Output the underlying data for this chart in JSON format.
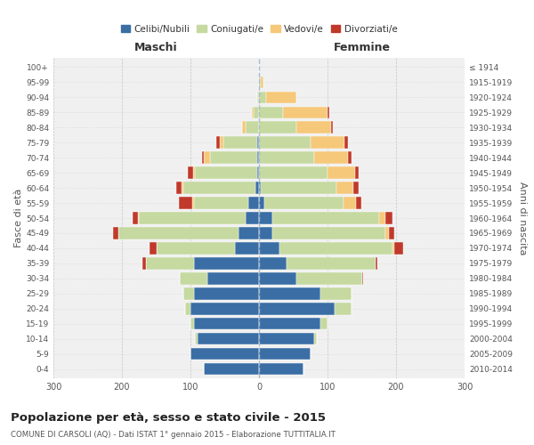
{
  "age_groups": [
    "0-4",
    "5-9",
    "10-14",
    "15-19",
    "20-24",
    "25-29",
    "30-34",
    "35-39",
    "40-44",
    "45-49",
    "50-54",
    "55-59",
    "60-64",
    "65-69",
    "70-74",
    "75-79",
    "80-84",
    "85-89",
    "90-94",
    "95-99",
    "100+"
  ],
  "birth_years": [
    "2010-2014",
    "2005-2009",
    "2000-2004",
    "1995-1999",
    "1990-1994",
    "1985-1989",
    "1980-1984",
    "1975-1979",
    "1970-1974",
    "1965-1969",
    "1960-1964",
    "1955-1959",
    "1950-1954",
    "1945-1949",
    "1940-1944",
    "1935-1939",
    "1930-1934",
    "1925-1929",
    "1920-1924",
    "1915-1919",
    "≤ 1914"
  ],
  "male": {
    "celibi": [
      80,
      100,
      90,
      95,
      100,
      95,
      75,
      95,
      35,
      30,
      20,
      15,
      5,
      3,
      2,
      2,
      0,
      0,
      0,
      0,
      0
    ],
    "coniugati": [
      0,
      0,
      3,
      5,
      8,
      15,
      40,
      70,
      115,
      175,
      155,
      80,
      105,
      90,
      70,
      50,
      20,
      8,
      3,
      0,
      0
    ],
    "vedovi": [
      0,
      0,
      0,
      0,
      0,
      0,
      0,
      0,
      0,
      0,
      2,
      2,
      3,
      3,
      8,
      5,
      5,
      3,
      0,
      0,
      0
    ],
    "divorziati": [
      0,
      0,
      0,
      0,
      0,
      0,
      0,
      5,
      10,
      8,
      8,
      20,
      8,
      8,
      3,
      5,
      0,
      0,
      0,
      0,
      0
    ]
  },
  "female": {
    "nubili": [
      65,
      75,
      80,
      90,
      110,
      90,
      55,
      40,
      30,
      20,
      20,
      8,
      3,
      0,
      0,
      0,
      0,
      0,
      0,
      0,
      0
    ],
    "coniugate": [
      0,
      0,
      5,
      10,
      25,
      45,
      95,
      130,
      165,
      165,
      155,
      115,
      110,
      100,
      80,
      75,
      55,
      35,
      10,
      2,
      0
    ],
    "vedove": [
      0,
      0,
      0,
      0,
      0,
      0,
      0,
      0,
      3,
      5,
      10,
      18,
      25,
      40,
      50,
      50,
      50,
      65,
      45,
      5,
      0
    ],
    "divorziate": [
      0,
      0,
      0,
      0,
      0,
      0,
      2,
      3,
      12,
      8,
      10,
      8,
      8,
      5,
      5,
      5,
      3,
      3,
      0,
      0,
      0
    ]
  },
  "colors": {
    "celibi": "#3A6EA5",
    "coniugati": "#C5D9A0",
    "vedovi": "#F5C87A",
    "divorziati": "#C0392B"
  },
  "legend_labels": [
    "Celibi/Nubili",
    "Coniugati/e",
    "Vedovi/e",
    "Divorziati/e"
  ],
  "title": "Popolazione per età, sesso e stato civile - 2015",
  "subtitle": "COMUNE DI CARSOLI (AQ) - Dati ISTAT 1° gennaio 2015 - Elaborazione TUTTITALIA.IT",
  "xlabel_left": "Maschi",
  "xlabel_right": "Femmine",
  "ylabel_left": "Fasce di età",
  "ylabel_right": "Anni di nascita",
  "xlim": 300,
  "background_color": "#ffffff"
}
